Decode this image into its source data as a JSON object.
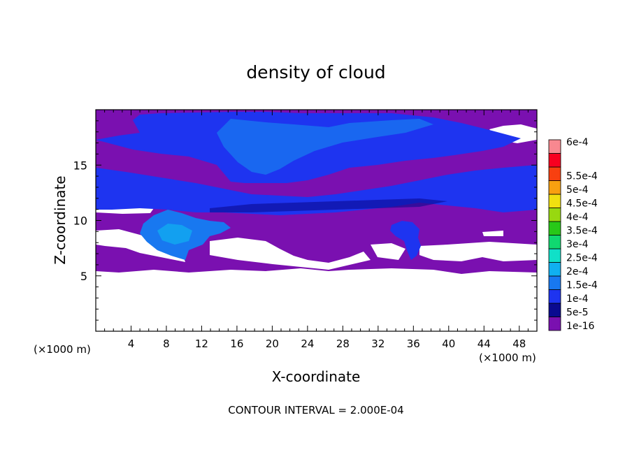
{
  "chart_data": {
    "type": "heatmap",
    "title": "density of cloud",
    "xlabel": "X-coordinate",
    "ylabel": "Z-coordinate",
    "x_unit": "(×1000 m)",
    "z_unit": "(×1000 m)",
    "footer": "CONTOUR INTERVAL = 2.000E-04",
    "xlim": [
      0,
      50
    ],
    "ylim": [
      0,
      20
    ],
    "x_ticks": [
      4,
      8,
      12,
      16,
      20,
      24,
      28,
      32,
      36,
      40,
      44,
      48
    ],
    "y_ticks": [
      5,
      10,
      15
    ],
    "colorbar": {
      "labels": [
        "1e-16",
        "5e-5",
        "1e-4",
        "1.5e-4",
        "2e-4",
        "2.5e-4",
        "3e-4",
        "3.5e-4",
        "4e-4",
        "4.5e-4",
        "5e-4",
        "5.5e-4",
        "6e-4"
      ],
      "colors": [
        "#7a10b0",
        "#0a0a90",
        "#1e34f0",
        "#1878f0",
        "#10b0f0",
        "#10e0c8",
        "#10d870",
        "#28c818",
        "#98d810",
        "#f0e010",
        "#f8a010",
        "#f84010",
        "#f80020",
        "#f88890"
      ]
    },
    "field": {
      "cloud_base": 5.3,
      "cloud_top": 19.8,
      "blue_layer_bottom": 10.3,
      "blue_layer_top": 19.5,
      "cells": [
        {
          "x": 8.5,
          "z": 8.6,
          "level": "1.5e-4"
        },
        {
          "x": 35.5,
          "z": 8.2,
          "level": "1e-4"
        },
        {
          "x": 22.0,
          "z": 15.0,
          "level": "1.5e-4"
        }
      ]
    }
  }
}
